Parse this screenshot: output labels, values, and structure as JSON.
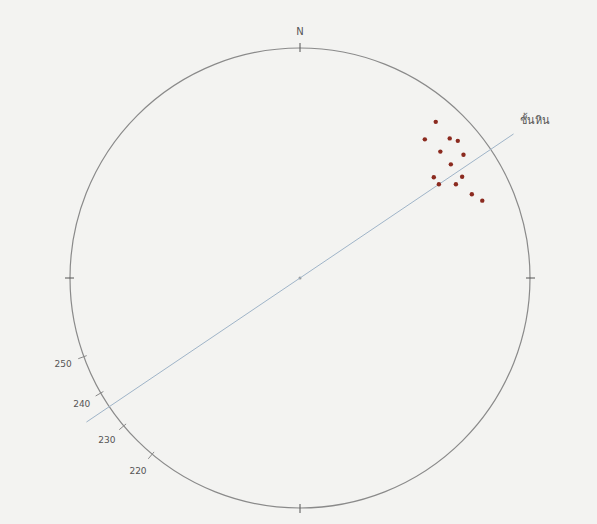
{
  "chart_data": {
    "type": "stereonet",
    "north_label": "N",
    "azimuth_ticks": [
      250,
      240,
      230,
      220
    ],
    "azimuth": [
      41,
      47,
      42,
      49,
      48,
      53,
      53,
      53,
      58,
      59,
      64,
      67,
      56
    ],
    "plunge": [
      11,
      12,
      20,
      10,
      19,
      12,
      19,
      28,
      18,
      22,
      18,
      15,
      28
    ],
    "color": "#8b2a1f",
    "marker": "dot",
    "lines": [
      {
        "azimuth": 56,
        "label": "ชั้นหิน"
      }
    ]
  }
}
